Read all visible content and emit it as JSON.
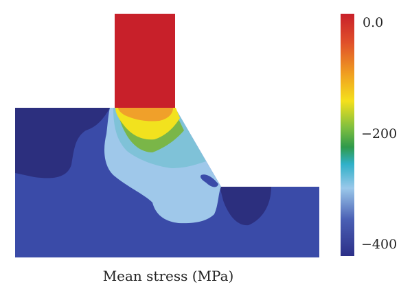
{
  "caption": "Mean stress (MPa)",
  "colorbar": {
    "ticks": [
      {
        "value": 0,
        "label": "0.0"
      },
      {
        "value": -200,
        "label": "−200"
      },
      {
        "value": -400,
        "label": "−400"
      }
    ],
    "colors": [
      "#c8202a",
      "#e8601e",
      "#f0a020",
      "#f4e01c",
      "#7fbf3f",
      "#2f9a4a",
      "#3fb7c8",
      "#9ac8ea",
      "#4a5fb4",
      "#2c2f88"
    ]
  },
  "contour_colors": {
    "base": "#3a4ba8",
    "dark": "#2c2f7e",
    "light_blue": "#9fc8ea",
    "cyan": "#7fc2d8",
    "green": "#7ab648",
    "yellow": "#f2e21e",
    "orange": "#f0a02a",
    "red": "#c8202a"
  }
}
